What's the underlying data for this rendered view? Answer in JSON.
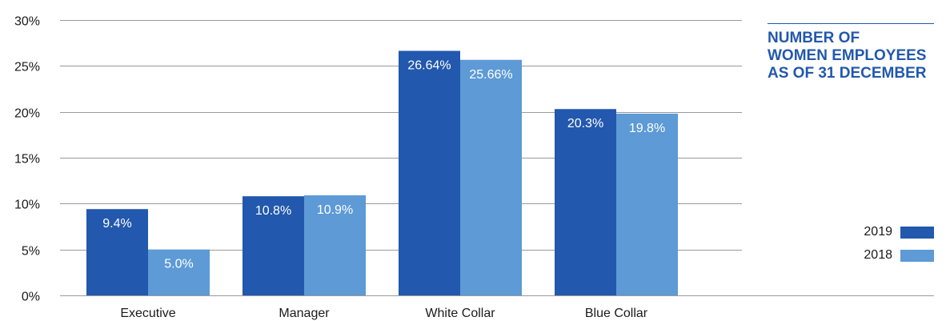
{
  "chart_data": {
    "type": "bar",
    "title_lines": [
      "NUMBER OF",
      "WOMEN EMPLOYEES",
      "AS OF 31 DECEMBER"
    ],
    "categories": [
      "Executive",
      "Manager",
      "White Collar",
      "Blue Collar"
    ],
    "series": [
      {
        "name": "2019",
        "color": "#2258ad",
        "values": [
          9.4,
          10.8,
          26.64,
          20.3
        ],
        "labels": [
          "9.4%",
          "10.8%",
          "26.64%",
          "20.3%"
        ]
      },
      {
        "name": "2018",
        "color": "#5d9ad6",
        "values": [
          5.0,
          10.9,
          25.66,
          19.8
        ],
        "labels": [
          "5.0%",
          "10.9%",
          "25.66%",
          "19.8%"
        ]
      }
    ],
    "ylim": [
      0,
      30
    ],
    "yticks": [
      0,
      5,
      10,
      15,
      20,
      25,
      30
    ],
    "ytick_labels": [
      "0%",
      "5%",
      "10%",
      "15%",
      "20%",
      "25%",
      "30%"
    ],
    "grid": true,
    "legend_position": "right"
  }
}
